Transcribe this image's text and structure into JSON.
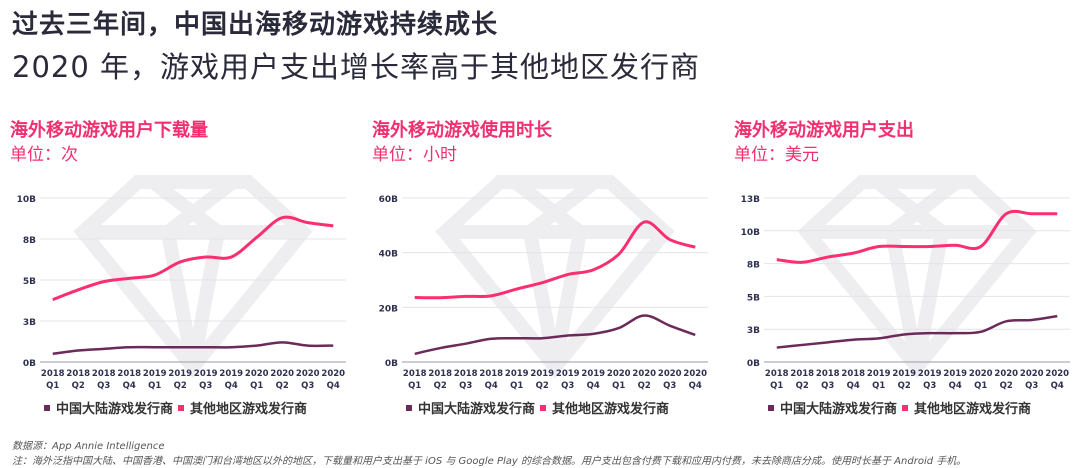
{
  "header": {
    "title": "过去三年间，中国出海移动游戏持续成长",
    "subtitle": "2020 年，游戏用户支出增长率高于其他地区发行商"
  },
  "colors": {
    "china": "#6b2a59",
    "other": "#fb2e6f",
    "axis_text": "#2f3150",
    "grid": "#e4e4e8",
    "title": "#f0306f"
  },
  "watermark_icon": "diamond-icon",
  "categories": [
    [
      "2018",
      "Q1"
    ],
    [
      "2018",
      "Q2"
    ],
    [
      "2018",
      "Q3"
    ],
    [
      "2018",
      "Q4"
    ],
    [
      "2019",
      "Q1"
    ],
    [
      "2019",
      "Q2"
    ],
    [
      "2019",
      "Q3"
    ],
    [
      "2019",
      "Q4"
    ],
    [
      "2020",
      "Q1"
    ],
    [
      "2020",
      "Q2"
    ],
    [
      "2020",
      "Q3"
    ],
    [
      "2020",
      "Q4"
    ]
  ],
  "legend": [
    "中国大陆游戏发行商",
    "其他地区游戏发行商"
  ],
  "chart_data": [
    {
      "type": "line",
      "title": "海外移动游戏用户下载量",
      "unit": "单位：次",
      "ylim": [
        0,
        10
      ],
      "yticks": [
        0,
        2.5,
        5,
        7.5,
        10
      ],
      "ytick_labels": [
        "0B",
        "3B",
        "5B",
        "8B",
        "10B"
      ],
      "grid": true,
      "legend": "bottom",
      "series": [
        {
          "name": "中国大陆游戏发行商",
          "values": [
            0.5,
            0.7,
            0.8,
            0.9,
            0.9,
            0.9,
            0.9,
            0.9,
            1.0,
            1.2,
            1.0,
            1.0
          ]
        },
        {
          "name": "其他地区游戏发行商",
          "values": [
            3.8,
            4.4,
            4.9,
            5.1,
            5.3,
            6.1,
            6.4,
            6.4,
            7.6,
            8.8,
            8.5,
            8.3
          ]
        }
      ]
    },
    {
      "type": "line",
      "title": "海外移动游戏使用时长",
      "unit": "单位：小时",
      "ylim": [
        0,
        60
      ],
      "yticks": [
        0,
        20,
        40,
        60
      ],
      "ytick_labels": [
        "0B",
        "20B",
        "40B",
        "60B"
      ],
      "grid": true,
      "legend": "bottom",
      "series": [
        {
          "name": "中国大陆游戏发行商",
          "values": [
            3,
            5.1,
            6.7,
            8.5,
            8.7,
            8.7,
            9.7,
            10.3,
            12.4,
            17,
            13.3,
            9.9
          ]
        },
        {
          "name": "其他地区游戏发行商",
          "values": [
            23.6,
            23.5,
            24,
            24.2,
            26.7,
            29,
            32,
            33.7,
            39.4,
            51.2,
            44.8,
            42
          ]
        }
      ]
    },
    {
      "type": "line",
      "title": "海外移动游戏用户支出",
      "unit": "单位：美元",
      "ylim": [
        0,
        12.5
      ],
      "yticks": [
        0,
        2.5,
        5,
        7.5,
        10,
        12.5
      ],
      "ytick_labels": [
        "0B",
        "3B",
        "5B",
        "8B",
        "10B",
        "13B"
      ],
      "grid": true,
      "legend": "bottom",
      "series": [
        {
          "name": "中国大陆游戏发行商",
          "values": [
            1.1,
            1.3,
            1.5,
            1.7,
            1.8,
            2.1,
            2.2,
            2.2,
            2.3,
            3.1,
            3.2,
            3.5
          ]
        },
        {
          "name": "其他地区游戏发行商",
          "values": [
            7.8,
            7.6,
            8.0,
            8.3,
            8.8,
            8.8,
            8.8,
            8.9,
            8.8,
            11.3,
            11.3,
            11.3
          ]
        }
      ]
    }
  ],
  "footer": {
    "source": "数据源：App Annie Intelligence",
    "note": "注：海外泛指中国大陆、中国香港、中国澳门和台湾地区以外的地区，下载量和用户支出基于 iOS 与 Google Play 的综合数据。用户支出包含付费下载和应用内付费，未去除商店分成。使用时长基于 Android 手机。"
  }
}
